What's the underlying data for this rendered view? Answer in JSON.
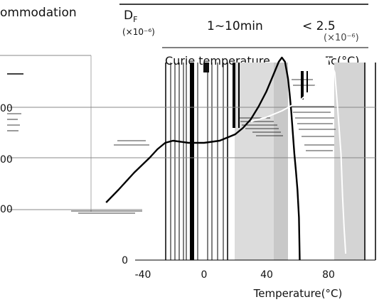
{
  "header": {
    "left_fragment": "ommodation",
    "df_symbol": "D",
    "df_subscript": "F",
    "df_unit_fragment": "(×10⁻⁶)",
    "time_value": "1~10min",
    "limit_value": "< 2.5",
    "limit_unit_fragment": "(×10⁻⁶)",
    "curie_label": "Curie temperature",
    "tc_label": "Tc(°C)"
  },
  "chart_data": {
    "type": "line",
    "xlabel": "Temperature(°C)",
    "x_ticks": [
      -40,
      0,
      40,
      80
    ],
    "y_ticks_visible": [
      "0"
    ],
    "y_ticks_partial": [
      "00",
      "00",
      "00"
    ],
    "xlim": [
      -40,
      100
    ],
    "grid": true,
    "series": [
      {
        "color": "#000000",
        "x": [
          -63,
          -55,
          -45,
          -35,
          -30,
          -25,
          -20,
          -10,
          0,
          10,
          20,
          25,
          30,
          35,
          40,
          44,
          48,
          50,
          52,
          54,
          55,
          56,
          57,
          58,
          59,
          60,
          61,
          61.5
        ],
        "y": [
          0.27,
          0.33,
          0.41,
          0.48,
          0.52,
          0.55,
          0.56,
          0.55,
          0.55,
          0.56,
          0.59,
          0.62,
          0.66,
          0.72,
          0.79,
          0.86,
          0.93,
          0.95,
          0.93,
          0.85,
          0.78,
          0.7,
          0.6,
          0.5,
          0.42,
          0.33,
          0.2,
          0.0
        ]
      },
      {
        "color": "#ffffff",
        "x": [
          30,
          40,
          50,
          60,
          70,
          76,
          80,
          84,
          86,
          88,
          89,
          90,
          91
        ],
        "y": [
          0.65,
          0.67,
          0.7,
          0.74,
          0.8,
          0.87,
          0.95,
          0.88,
          0.7,
          0.5,
          0.3,
          0.15,
          0.03
        ]
      }
    ]
  }
}
